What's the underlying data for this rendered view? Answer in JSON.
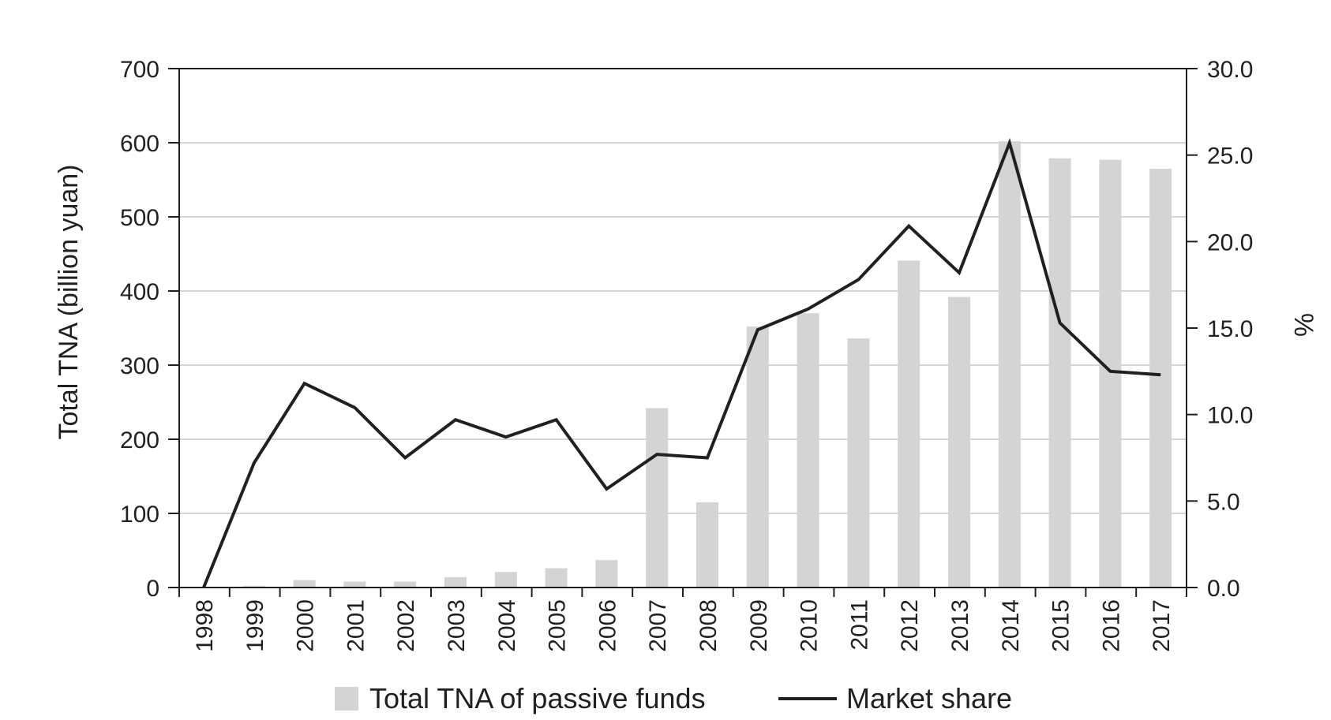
{
  "chart_data": {
    "type": "bar",
    "title": "",
    "categories": [
      "1998",
      "1999",
      "2000",
      "2001",
      "2002",
      "2003",
      "2004",
      "2005",
      "2006",
      "2007",
      "2008",
      "2009",
      "2010",
      "2011",
      "2012",
      "2013",
      "2014",
      "2015",
      "2016",
      "2017"
    ],
    "series": [
      {
        "name": "Total TNA of passive funds",
        "type": "bar",
        "axis": "left",
        "color": "#d4d4d4",
        "values": [
          0,
          2,
          10,
          8,
          8,
          14,
          21,
          26,
          37,
          242,
          115,
          352,
          370,
          336,
          441,
          392,
          602,
          579,
          577,
          565
        ]
      },
      {
        "name": "Market share",
        "type": "line",
        "axis": "right",
        "color": "#231f20",
        "values": [
          0.0,
          7.2,
          11.8,
          10.4,
          7.5,
          9.7,
          8.7,
          9.7,
          5.7,
          7.7,
          7.5,
          14.9,
          16.1,
          17.8,
          20.9,
          18.2,
          25.7,
          15.3,
          12.5,
          12.3
        ]
      }
    ],
    "xlabel": "",
    "ylabel_left": "Total TNA (billion yuan)",
    "ylabel_right": "%",
    "ylim_left": [
      0,
      700
    ],
    "yticks_left": [
      "0",
      "100",
      "200",
      "300",
      "400",
      "500",
      "600",
      "700"
    ],
    "ylim_right": [
      0,
      30
    ],
    "yticks_right": [
      "0.0",
      "5.0",
      "10.0",
      "15.0",
      "20.0",
      "25.0",
      "30.0"
    ],
    "grid": true,
    "legend_position": "bottom"
  }
}
